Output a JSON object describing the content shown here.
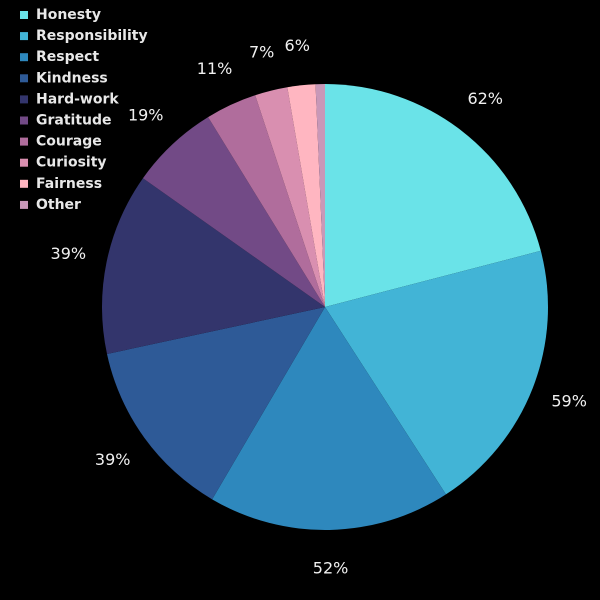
{
  "chart_data": {
    "type": "pie",
    "categories": [
      "Honesty",
      "Responsibility",
      "Respect",
      "Kindness",
      "Hard-work",
      "Gratitude",
      "Courage",
      "Curiosity",
      "Fairness",
      "Other"
    ],
    "values": [
      62,
      59,
      52,
      39,
      39,
      19,
      11,
      7,
      6,
      2
    ],
    "value_labels": [
      "62%",
      "59%",
      "52%",
      "39%",
      "39%",
      "19%",
      "11%",
      "7%",
      "6%",
      null
    ],
    "colors": [
      "#6ae3e8",
      "#42b4d6",
      "#2e88bd",
      "#2e5a97",
      "#33356c",
      "#724a86",
      "#b06d9c",
      "#d98fb0",
      "#ffb6c1",
      "#c898b8"
    ],
    "legend": "top-left"
  }
}
